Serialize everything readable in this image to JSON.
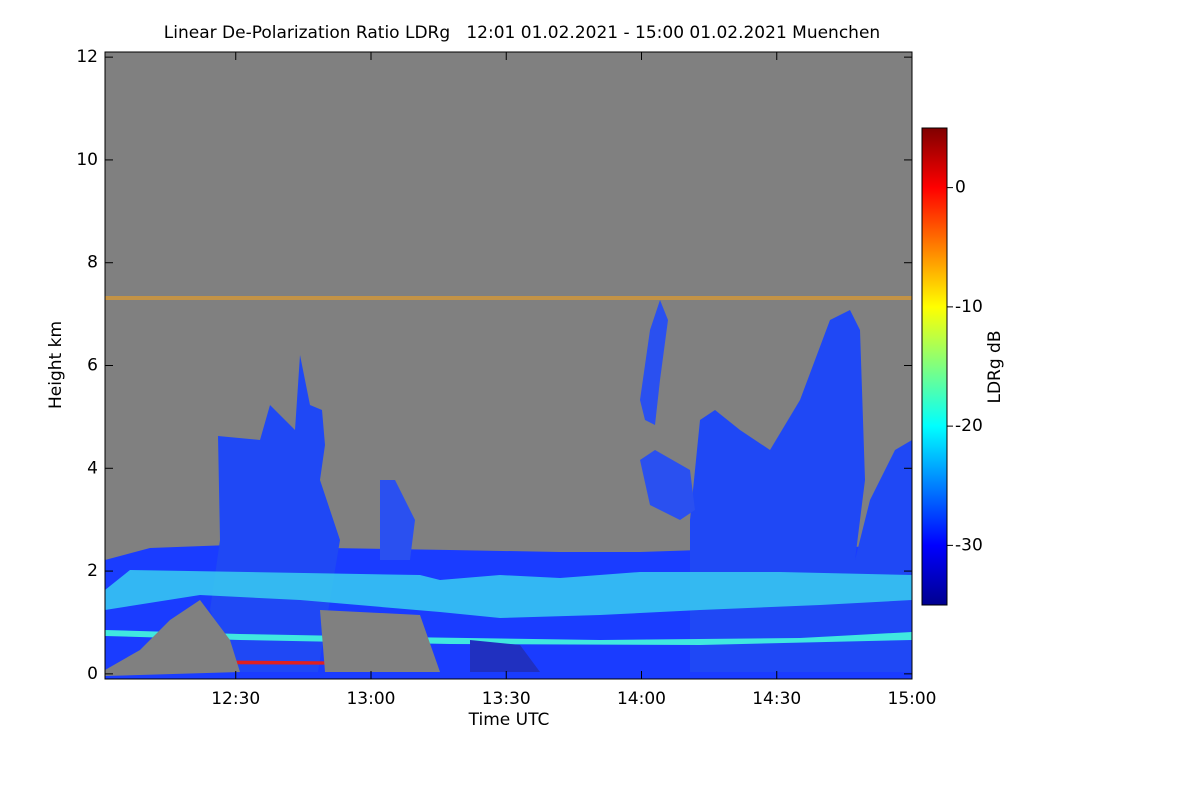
{
  "chart_data": {
    "type": "heatmap",
    "title": "Linear De-Polarization Ratio LDRg   12:01 01.02.2021 - 15:00 01.02.2021 Muenchen",
    "xlabel": "Time UTC",
    "ylabel": "Height km",
    "xlim": [
      721,
      900
    ],
    "xticks": [
      {
        "value": 750,
        "label": "12:30"
      },
      {
        "value": 780,
        "label": "13:00"
      },
      {
        "value": 810,
        "label": "13:30"
      },
      {
        "value": 840,
        "label": "14:00"
      },
      {
        "value": 870,
        "label": "14:30"
      },
      {
        "value": 900,
        "label": "15:00"
      }
    ],
    "ylim": [
      -0.1,
      12.1
    ],
    "yticks": [
      0,
      2,
      4,
      6,
      8,
      10,
      12
    ],
    "colorbar": {
      "label": "LDRg dB",
      "clim": [
        -35,
        5
      ],
      "ticks": [
        0,
        -10,
        -20,
        -30
      ],
      "colormap": "jet"
    }
  }
}
